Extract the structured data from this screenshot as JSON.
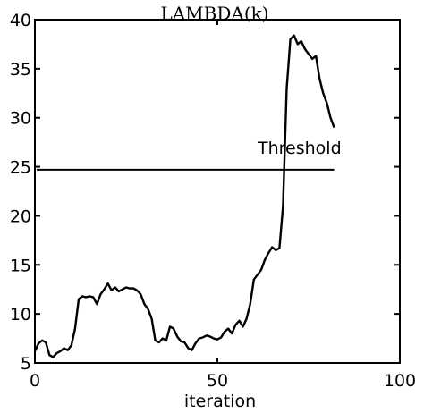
{
  "chart_data": {
    "type": "line",
    "title": "LAMBDA(k)",
    "xlabel": "iteration",
    "ylabel": "",
    "xlim": [
      0,
      100
    ],
    "ylim": [
      5,
      40
    ],
    "xticks": [
      0,
      50,
      100
    ],
    "yticks": [
      5,
      10,
      15,
      20,
      25,
      30,
      35,
      40
    ],
    "xtick_labels": [
      "0",
      "50",
      "100"
    ],
    "ytick_labels": [
      "5",
      "10",
      "15",
      "20",
      "25",
      "30",
      "35",
      "40"
    ],
    "grid": false,
    "series": [
      {
        "x": [
          0,
          1,
          2,
          3,
          4,
          5,
          6,
          7,
          8,
          9,
          10,
          11,
          12,
          13,
          14,
          15,
          16,
          17,
          18,
          19,
          20,
          21,
          22,
          23,
          24,
          25,
          26,
          27,
          28,
          29,
          30,
          31,
          32,
          33,
          34,
          35,
          36,
          37,
          38,
          39,
          40,
          41,
          42,
          43,
          44,
          45,
          46,
          47,
          48,
          49,
          50,
          51,
          52,
          53,
          54,
          55,
          56,
          57,
          58,
          59,
          60,
          61,
          62,
          63,
          64,
          65,
          66,
          67,
          68,
          69,
          70,
          71,
          72,
          73,
          74,
          75,
          76,
          77,
          78,
          79,
          80,
          81,
          82
        ],
        "values": [
          6.2,
          7.0,
          7.3,
          7.1,
          5.8,
          5.6,
          6.0,
          6.2,
          6.5,
          6.3,
          6.8,
          8.5,
          11.5,
          11.8,
          11.7,
          11.8,
          11.7,
          11.0,
          12.0,
          12.5,
          13.1,
          12.4,
          12.7,
          12.3,
          12.5,
          12.7,
          12.6,
          12.6,
          12.4,
          12.0,
          11.0,
          10.5,
          9.5,
          7.3,
          7.1,
          7.5,
          7.3,
          8.7,
          8.5,
          7.7,
          7.2,
          7.1,
          6.5,
          6.3,
          7.0,
          7.5,
          7.6,
          7.8,
          7.7,
          7.5,
          7.4,
          7.6,
          8.2,
          8.5,
          8.0,
          8.9,
          9.3,
          8.7,
          9.5,
          11.0,
          13.5,
          14.0,
          14.5,
          15.5,
          16.2,
          16.8,
          16.5,
          16.7,
          21.0,
          33.0,
          38.0,
          38.4,
          37.5,
          37.8,
          37.0,
          36.5,
          36.0,
          36.3,
          34.0,
          32.5,
          31.5,
          30.0,
          29.0
        ]
      }
    ],
    "threshold": {
      "label": "Threshold",
      "y": 24.7,
      "x_start": 0.5,
      "x_end": 82
    }
  }
}
